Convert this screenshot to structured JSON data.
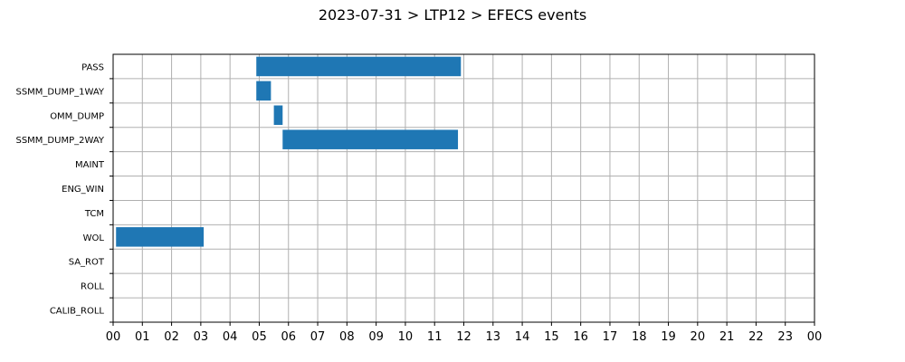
{
  "chart_data": {
    "type": "gantt",
    "title": "2023-07-31 > LTP12 > EFECS events",
    "xlabel": "",
    "ylabel": "",
    "x_unit": "hour of day",
    "xlim": [
      0,
      24
    ],
    "x_tick_labels": [
      "00",
      "01",
      "02",
      "03",
      "04",
      "05",
      "06",
      "07",
      "08",
      "09",
      "10",
      "11",
      "12",
      "13",
      "14",
      "15",
      "16",
      "17",
      "18",
      "19",
      "20",
      "21",
      "22",
      "23",
      "00"
    ],
    "categories": [
      "PASS",
      "SSMM_DUMP_1WAY",
      "OMM_DUMP",
      "SSMM_DUMP_2WAY",
      "MAINT",
      "ENG_WIN",
      "TCM",
      "WOL",
      "SA_ROT",
      "ROLL",
      "CALIB_ROLL"
    ],
    "events": [
      {
        "category": "PASS",
        "start": 4.9,
        "end": 11.9
      },
      {
        "category": "SSMM_DUMP_1WAY",
        "start": 4.9,
        "end": 5.4
      },
      {
        "category": "OMM_DUMP",
        "start": 5.5,
        "end": 5.8
      },
      {
        "category": "SSMM_DUMP_2WAY",
        "start": 5.8,
        "end": 11.8
      },
      {
        "category": "WOL",
        "start": 0.1,
        "end": 3.1
      }
    ],
    "grid": true,
    "bar_color": "#1f77b4"
  }
}
